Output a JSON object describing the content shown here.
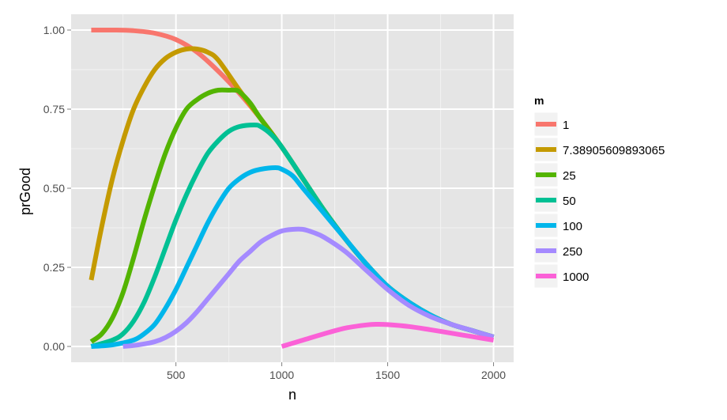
{
  "chart_data": {
    "type": "line",
    "title": "",
    "xlabel": "n",
    "ylabel": "prGood",
    "xlim": [
      100,
      2000
    ],
    "ylim": [
      0,
      1
    ],
    "x_ticks": [
      500,
      1000,
      1500,
      2000
    ],
    "y_ticks": [
      0.0,
      0.25,
      0.5,
      0.75,
      1.0
    ],
    "x_tick_labels": [
      "500",
      "1000",
      "1500",
      "2000"
    ],
    "y_tick_labels": [
      "0.00",
      "0.25",
      "0.50",
      "0.75",
      "1.00"
    ],
    "grid": true,
    "legend_title": "m",
    "legend_position": "right",
    "series": [
      {
        "name": "1",
        "color": "#F8766D",
        "x": [
          100,
          200,
          300,
          400,
          500,
          600,
          700,
          800,
          900,
          1000,
          1100,
          1200,
          1300,
          1400,
          1500,
          1600,
          1700,
          1800,
          1900,
          2000
        ],
        "y": [
          1.0,
          1.0,
          0.998,
          0.99,
          0.97,
          0.93,
          0.87,
          0.8,
          0.72,
          0.63,
          0.53,
          0.43,
          0.34,
          0.26,
          0.19,
          0.14,
          0.1,
          0.07,
          0.05,
          0.03
        ]
      },
      {
        "name": "7.38905609893065",
        "color": "#C49A00",
        "x": [
          100,
          150,
          200,
          250,
          300,
          350,
          400,
          450,
          500,
          550,
          600,
          650,
          700,
          800,
          900,
          1000,
          1100,
          1200,
          1300,
          1400,
          1500,
          1600,
          1700,
          1800,
          1900,
          2000
        ],
        "y": [
          0.21,
          0.38,
          0.53,
          0.65,
          0.75,
          0.82,
          0.875,
          0.91,
          0.93,
          0.94,
          0.94,
          0.93,
          0.905,
          0.81,
          0.72,
          0.63,
          0.53,
          0.43,
          0.34,
          0.26,
          0.19,
          0.14,
          0.1,
          0.07,
          0.05,
          0.03
        ]
      },
      {
        "name": "25",
        "color": "#53B400",
        "x": [
          100,
          150,
          200,
          250,
          300,
          350,
          400,
          450,
          500,
          550,
          600,
          650,
          700,
          750,
          780,
          800,
          850,
          900,
          1000,
          1100,
          1200,
          1300,
          1400,
          1500,
          1600,
          1700,
          1800,
          1900,
          2000
        ],
        "y": [
          0.015,
          0.04,
          0.09,
          0.17,
          0.28,
          0.4,
          0.51,
          0.61,
          0.69,
          0.75,
          0.78,
          0.8,
          0.81,
          0.81,
          0.81,
          0.805,
          0.77,
          0.72,
          0.63,
          0.53,
          0.43,
          0.34,
          0.26,
          0.19,
          0.14,
          0.1,
          0.07,
          0.05,
          0.03
        ]
      },
      {
        "name": "50",
        "color": "#00C094",
        "x": [
          100,
          200,
          250,
          300,
          350,
          400,
          450,
          500,
          550,
          600,
          650,
          700,
          750,
          800,
          870,
          900,
          950,
          1000,
          1100,
          1200,
          1300,
          1400,
          1500,
          1600,
          1700,
          1800,
          1900,
          2000
        ],
        "y": [
          0.0,
          0.02,
          0.04,
          0.08,
          0.14,
          0.22,
          0.31,
          0.4,
          0.48,
          0.55,
          0.61,
          0.65,
          0.68,
          0.695,
          0.7,
          0.695,
          0.67,
          0.63,
          0.53,
          0.43,
          0.34,
          0.26,
          0.19,
          0.14,
          0.1,
          0.07,
          0.05,
          0.03
        ]
      },
      {
        "name": "100",
        "color": "#00B6EB",
        "x": [
          100,
          200,
          300,
          350,
          400,
          450,
          500,
          550,
          600,
          650,
          700,
          750,
          800,
          850,
          900,
          970,
          1000,
          1050,
          1100,
          1200,
          1300,
          1400,
          1500,
          1600,
          1700,
          1800,
          1900,
          2000
        ],
        "y": [
          0.0,
          0.005,
          0.02,
          0.04,
          0.07,
          0.12,
          0.18,
          0.25,
          0.32,
          0.39,
          0.45,
          0.5,
          0.53,
          0.55,
          0.56,
          0.565,
          0.56,
          0.54,
          0.5,
          0.42,
          0.34,
          0.26,
          0.19,
          0.14,
          0.1,
          0.07,
          0.05,
          0.03
        ]
      },
      {
        "name": "250",
        "color": "#A58AFF",
        "x": [
          250,
          300,
          350,
          400,
          450,
          500,
          550,
          600,
          650,
          700,
          750,
          800,
          850,
          900,
          950,
          1000,
          1050,
          1100,
          1150,
          1200,
          1300,
          1400,
          1500,
          1600,
          1700,
          1800,
          1900,
          2000
        ],
        "y": [
          0.0,
          0.003,
          0.008,
          0.015,
          0.028,
          0.048,
          0.075,
          0.11,
          0.15,
          0.19,
          0.23,
          0.27,
          0.3,
          0.33,
          0.35,
          0.365,
          0.37,
          0.37,
          0.36,
          0.345,
          0.3,
          0.24,
          0.18,
          0.13,
          0.095,
          0.07,
          0.05,
          0.03
        ]
      },
      {
        "name": "1000",
        "color": "#FB61D7",
        "x": [
          1000,
          1100,
          1200,
          1300,
          1400,
          1450,
          1500,
          1600,
          1700,
          1800,
          1900,
          2000
        ],
        "y": [
          0.0,
          0.02,
          0.04,
          0.058,
          0.068,
          0.07,
          0.069,
          0.063,
          0.053,
          0.042,
          0.031,
          0.02
        ]
      }
    ]
  }
}
